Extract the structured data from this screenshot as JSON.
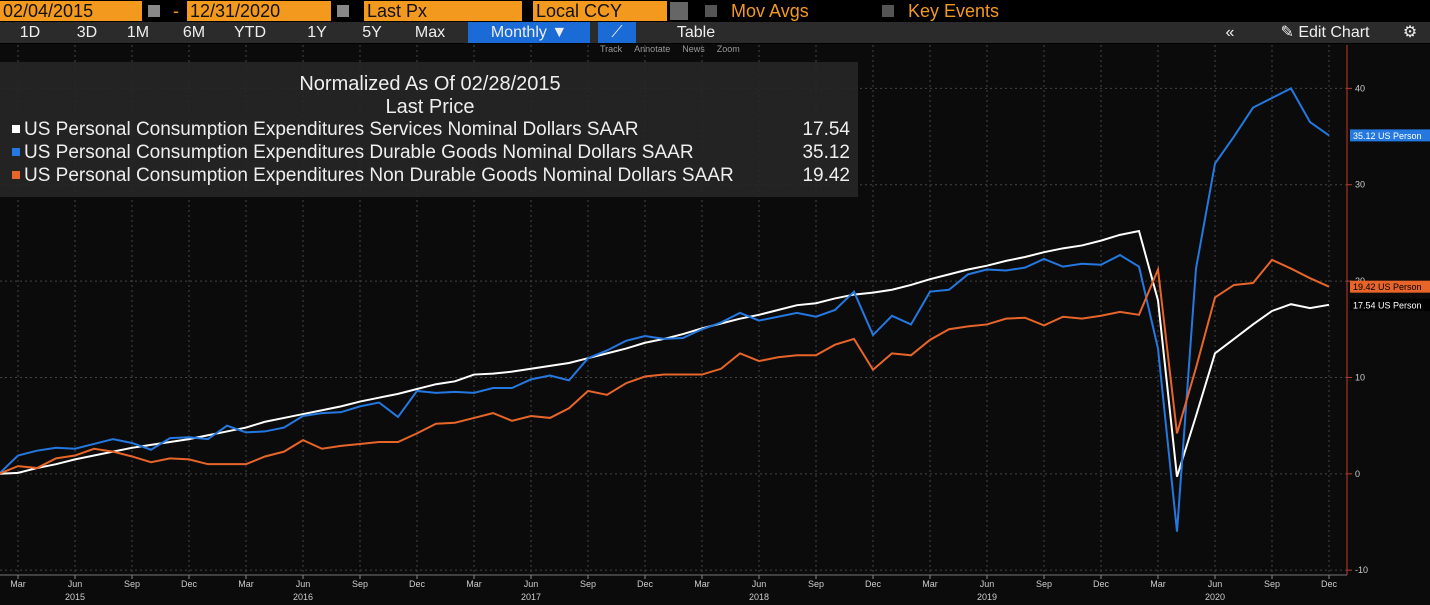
{
  "toolbar": {
    "start_date": "02/04/2015",
    "dash": "-",
    "end_date": "12/31/2020",
    "field": "Last Px",
    "currency": "Local CCY",
    "mov_avgs": "Mov Avgs",
    "key_events": "Key Events",
    "periods": [
      "1D",
      "3D",
      "1M",
      "6M",
      "YTD",
      "1Y",
      "5Y",
      "Max"
    ],
    "frequency": "Monthly",
    "table": "Table",
    "edit_chart": "Edit Chart",
    "tools": [
      "Track",
      "Annotate",
      "News",
      "Zoom"
    ]
  },
  "chart_data": {
    "type": "line",
    "title": "Normalized As Of 02/28/2015",
    "subtitle": "Last Price",
    "x": [
      "2015-02",
      "2015-03",
      "2015-04",
      "2015-05",
      "2015-06",
      "2015-07",
      "2015-08",
      "2015-09",
      "2015-10",
      "2015-11",
      "2015-12",
      "2016-01",
      "2016-02",
      "2016-03",
      "2016-04",
      "2016-05",
      "2016-06",
      "2016-07",
      "2016-08",
      "2016-09",
      "2016-10",
      "2016-11",
      "2016-12",
      "2017-01",
      "2017-02",
      "2017-03",
      "2017-04",
      "2017-05",
      "2017-06",
      "2017-07",
      "2017-08",
      "2017-09",
      "2017-10",
      "2017-11",
      "2017-12",
      "2018-01",
      "2018-02",
      "2018-03",
      "2018-04",
      "2018-05",
      "2018-06",
      "2018-07",
      "2018-08",
      "2018-09",
      "2018-10",
      "2018-11",
      "2018-12",
      "2019-01",
      "2019-02",
      "2019-03",
      "2019-04",
      "2019-05",
      "2019-06",
      "2019-07",
      "2019-08",
      "2019-09",
      "2019-10",
      "2019-11",
      "2019-12",
      "2020-01",
      "2020-02",
      "2020-03",
      "2020-04",
      "2020-05",
      "2020-06",
      "2020-07",
      "2020-08",
      "2020-09",
      "2020-10",
      "2020-11",
      "2020-12"
    ],
    "series": [
      {
        "name": "US Personal Consumption Expenditures Services Nominal Dollars SAAR",
        "color": "#ffffff",
        "tag": "17.54 US Person",
        "values": [
          0,
          0.1,
          0.6,
          1.0,
          1.5,
          1.9,
          2.3,
          2.7,
          3.0,
          3.3,
          3.6,
          4.0,
          4.4,
          4.8,
          5.4,
          5.8,
          6.2,
          6.6,
          7.0,
          7.5,
          7.9,
          8.3,
          8.8,
          9.3,
          9.6,
          10.3,
          10.4,
          10.6,
          10.9,
          11.2,
          11.5,
          12.0,
          12.5,
          13.0,
          13.6,
          14.0,
          14.5,
          15.1,
          15.6,
          16.1,
          16.5,
          17.0,
          17.5,
          17.7,
          18.2,
          18.6,
          18.8,
          19.1,
          19.6,
          20.2,
          20.7,
          21.2,
          21.6,
          22.1,
          22.5,
          23.0,
          23.4,
          23.7,
          24.2,
          24.8,
          25.2,
          18.0,
          -0.3,
          6.0,
          12.5,
          14.0,
          15.5,
          16.9,
          17.6,
          17.2,
          17.54
        ]
      },
      {
        "name": "US Personal Consumption Expenditures Durable Goods Nominal Dollars SAAR",
        "color": "#2478e0",
        "tag": "35.12 US Person",
        "values": [
          0,
          1.9,
          2.4,
          2.7,
          2.6,
          3.1,
          3.6,
          3.2,
          2.5,
          3.7,
          3.8,
          3.6,
          5.0,
          4.3,
          4.4,
          4.8,
          6.0,
          6.3,
          6.4,
          7.0,
          7.4,
          5.9,
          8.6,
          8.4,
          8.5,
          8.4,
          8.9,
          8.9,
          9.8,
          10.2,
          9.7,
          12.0,
          12.8,
          13.8,
          14.3,
          14.0,
          14.1,
          15.0,
          15.7,
          16.7,
          15.9,
          16.3,
          16.7,
          16.3,
          17.0,
          18.9,
          14.4,
          16.4,
          15.5,
          18.9,
          19.1,
          20.7,
          21.2,
          21.1,
          21.4,
          22.3,
          21.5,
          21.8,
          21.7,
          22.7,
          21.5,
          13.0,
          -6.0,
          21.3,
          32.2,
          35.0,
          38.0,
          39.0,
          40.0,
          36.5,
          35.12
        ]
      },
      {
        "name": "US Personal Consumption Expenditures Non Durable Goods Nominal Dollars SAAR",
        "color": "#e8652a",
        "tag": "19.42 US Person",
        "values": [
          0,
          0.8,
          0.6,
          1.6,
          1.9,
          2.6,
          2.3,
          1.8,
          1.2,
          1.6,
          1.5,
          1.0,
          1.0,
          1.0,
          1.8,
          2.3,
          3.5,
          2.6,
          2.9,
          3.1,
          3.3,
          3.3,
          4.2,
          5.2,
          5.3,
          5.8,
          6.3,
          5.5,
          6.0,
          5.8,
          6.8,
          8.6,
          8.2,
          9.4,
          10.1,
          10.3,
          10.3,
          10.3,
          10.9,
          12.5,
          11.7,
          12.1,
          12.3,
          12.3,
          13.4,
          14.0,
          10.8,
          12.5,
          12.3,
          13.9,
          15.0,
          15.3,
          15.5,
          16.1,
          16.2,
          15.4,
          16.3,
          16.1,
          16.4,
          16.8,
          16.5,
          21.2,
          4.2,
          11.0,
          18.3,
          19.6,
          19.8,
          22.2,
          21.3,
          20.3,
          19.42
        ]
      }
    ],
    "ylim": [
      -10.5,
      44.5
    ],
    "yticks": [
      -10,
      0,
      10,
      20,
      30,
      40
    ],
    "grid": true,
    "xticks": [
      {
        "value": "2015-03",
        "label": "Mar"
      },
      {
        "value": "2015-06",
        "label": "Jun"
      },
      {
        "value": "2015-09",
        "label": "Sep"
      },
      {
        "value": "2015-12",
        "label": "Dec"
      },
      {
        "value": "2016-03",
        "label": "Mar"
      },
      {
        "value": "2016-06",
        "label": "Jun"
      },
      {
        "value": "2016-09",
        "label": "Sep"
      },
      {
        "value": "2016-12",
        "label": "Dec"
      },
      {
        "value": "2017-03",
        "label": "Mar"
      },
      {
        "value": "2017-06",
        "label": "Jun"
      },
      {
        "value": "2017-09",
        "label": "Sep"
      },
      {
        "value": "2017-12",
        "label": "Dec"
      },
      {
        "value": "2018-03",
        "label": "Mar"
      },
      {
        "value": "2018-06",
        "label": "Jun"
      },
      {
        "value": "2018-09",
        "label": "Sep"
      },
      {
        "value": "2018-12",
        "label": "Dec"
      },
      {
        "value": "2019-03",
        "label": "Mar"
      },
      {
        "value": "2019-06",
        "label": "Jun"
      },
      {
        "value": "2019-09",
        "label": "Sep"
      },
      {
        "value": "2019-12",
        "label": "Dec"
      },
      {
        "value": "2020-03",
        "label": "Mar"
      },
      {
        "value": "2020-06",
        "label": "Jun"
      },
      {
        "value": "2020-09",
        "label": "Sep"
      },
      {
        "value": "2020-12",
        "label": "Dec"
      }
    ],
    "year_labels": [
      {
        "value": "2015-06",
        "label": "2015"
      },
      {
        "value": "2016-06",
        "label": "2016"
      },
      {
        "value": "2017-06",
        "label": "2017"
      },
      {
        "value": "2018-06",
        "label": "2018"
      },
      {
        "value": "2019-06",
        "label": "2019"
      },
      {
        "value": "2020-06",
        "label": "2020"
      }
    ]
  }
}
